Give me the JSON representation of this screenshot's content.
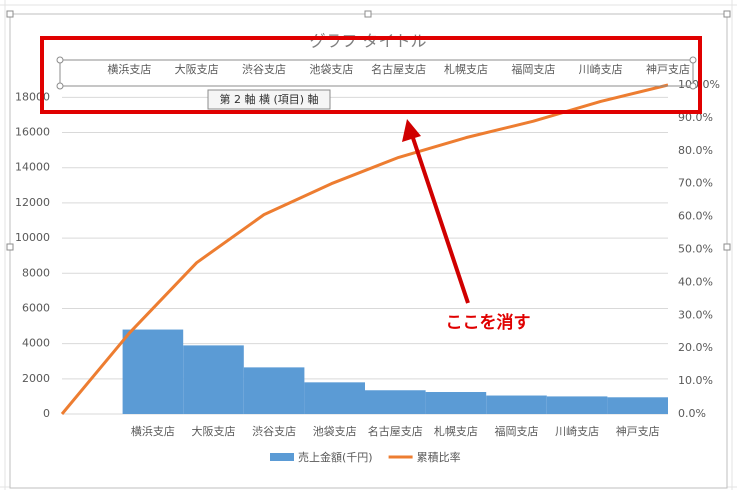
{
  "chart_data": {
    "type": "bar-line",
    "title": "グラフ タイトル",
    "categories": [
      null,
      "横浜支店",
      "大阪支店",
      "渋谷支店",
      "池袋支店",
      "名古屋支店",
      "札幌支店",
      "福岡支店",
      "川崎支店",
      "神戸支店"
    ],
    "series": [
      {
        "name": "売上金額(千円)",
        "color": "#5b9bd5",
        "type": "bar",
        "values": [
          null,
          4800,
          3900,
          2650,
          1800,
          1350,
          1250,
          1050,
          1000,
          950
        ]
      },
      {
        "name": "累積比率",
        "color": "#ed7d31",
        "type": "line",
        "axis": "y2",
        "values": [
          0,
          24.6,
          46,
          60.6,
          70,
          78,
          84,
          89,
          95,
          100
        ]
      }
    ],
    "ylim": [
      0,
      18700
    ],
    "yticks": [
      0,
      2000,
      4000,
      6000,
      8000,
      10000,
      12000,
      14000,
      16000,
      18000
    ],
    "y2lim": [
      0,
      100
    ],
    "y2ticks": [
      {
        "value": 0,
        "label": "0.0%"
      },
      {
        "value": 10,
        "label": "10.0%"
      },
      {
        "value": 20,
        "label": "20.0%"
      },
      {
        "value": 30,
        "label": "30.0%"
      },
      {
        "value": 40,
        "label": "40.0%"
      },
      {
        "value": 50,
        "label": "50.0%"
      },
      {
        "value": 60,
        "label": "60.0%"
      },
      {
        "value": 70,
        "label": "70.0%"
      },
      {
        "value": 80,
        "label": "80.0%"
      },
      {
        "value": 90,
        "label": "90.0%"
      },
      {
        "value": 100,
        "label": "100.0%"
      }
    ],
    "grid": true,
    "legend": "bottom",
    "tooltip": "第 2 軸 横 (項目) 軸",
    "annotation": "ここを消す"
  }
}
